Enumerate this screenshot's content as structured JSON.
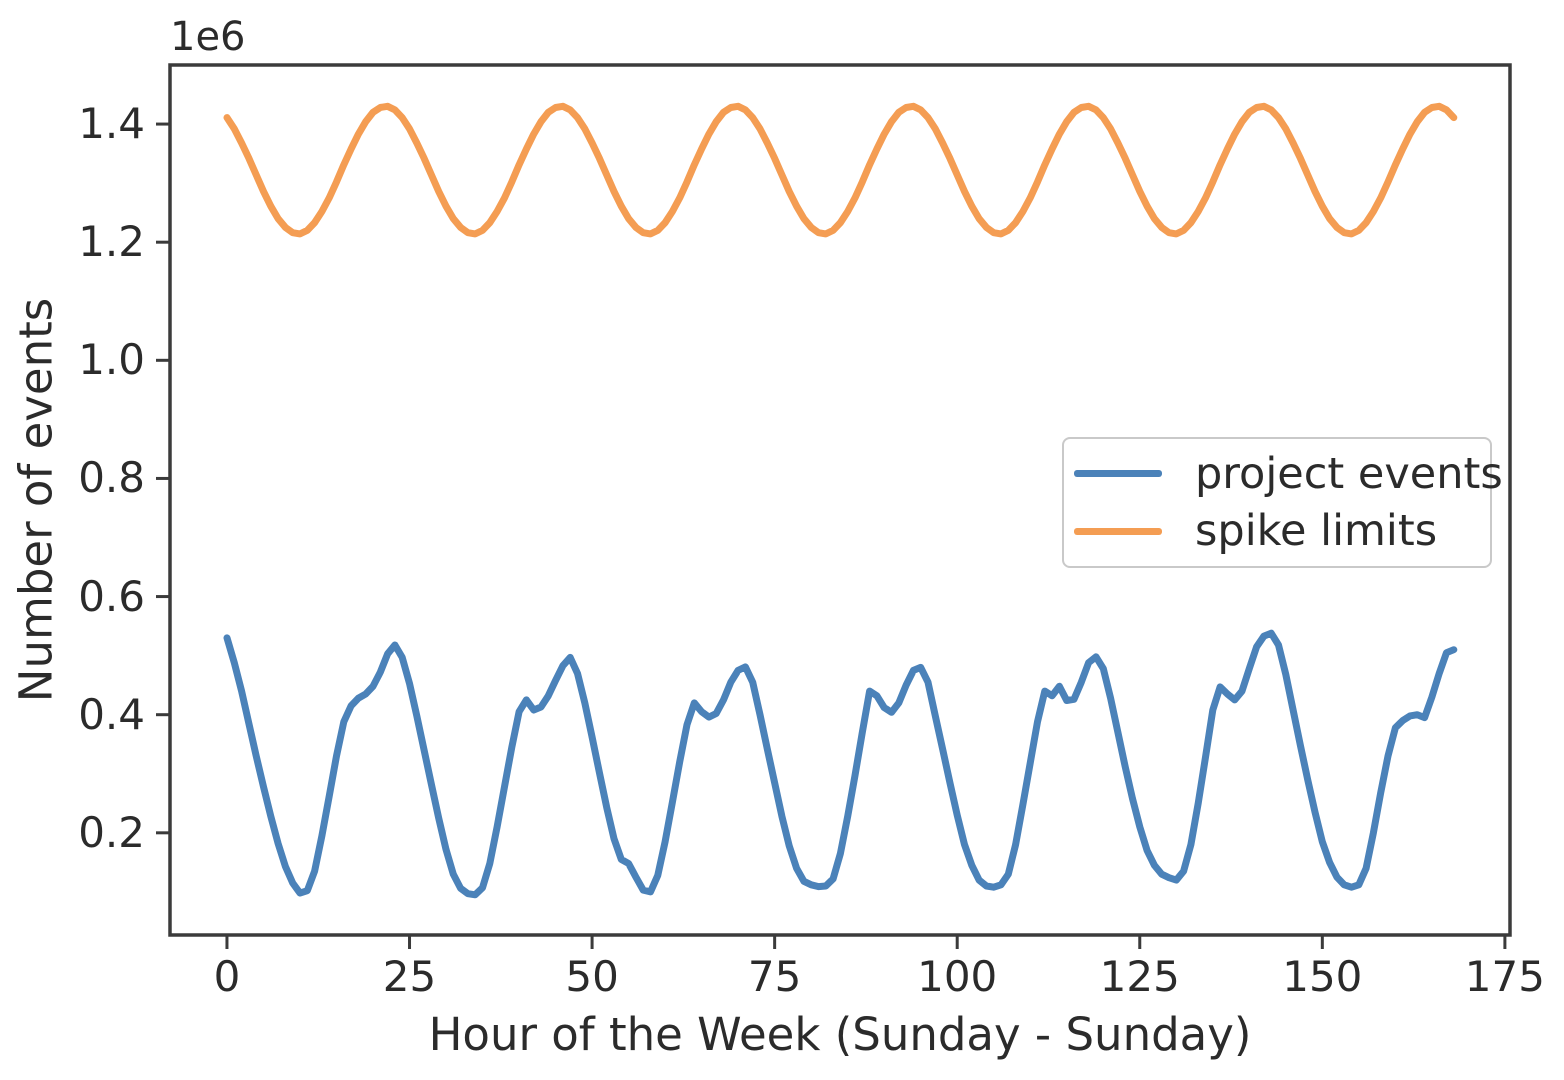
{
  "figure": {
    "colors": {
      "background": "#ffffff",
      "spine": "#3b3b3b",
      "text": "#2b2b2b",
      "legend_border": "#c9c9c9"
    }
  },
  "chart_data": {
    "type": "line",
    "xlabel": "Hour of the Week (Sunday - Sunday)",
    "ylabel": "Number of events",
    "y_offset_text": "1e6",
    "grid": false,
    "legend": {
      "location": "center right",
      "entries": [
        "project events",
        "spike limits"
      ]
    },
    "xlim": [
      -7.8,
      175.7
    ],
    "ylim": [
      27000,
      1500000
    ],
    "xticks": {
      "values": [
        0,
        25,
        50,
        75,
        100,
        125,
        150,
        175
      ],
      "labels": [
        "0",
        "25",
        "50",
        "75",
        "100",
        "125",
        "150",
        "175"
      ]
    },
    "yticks": {
      "values": [
        200000,
        400000,
        600000,
        800000,
        1000000,
        1200000,
        1400000
      ],
      "labels": [
        "0.2",
        "0.4",
        "0.6",
        "0.8",
        "1.0",
        "1.2",
        "1.4"
      ]
    },
    "x_hours": [
      0,
      1,
      2,
      3,
      4,
      5,
      6,
      7,
      8,
      9,
      10,
      11,
      12,
      13,
      14,
      15,
      16,
      17,
      18,
      19,
      20,
      21,
      22,
      23,
      24,
      25,
      26,
      27,
      28,
      29,
      30,
      31,
      32,
      33,
      34,
      35,
      36,
      37,
      38,
      39,
      40,
      41,
      42,
      43,
      44,
      45,
      46,
      47,
      48,
      49,
      50,
      51,
      52,
      53,
      54,
      55,
      56,
      57,
      58,
      59,
      60,
      61,
      62,
      63,
      64,
      65,
      66,
      67,
      68,
      69,
      70,
      71,
      72,
      73,
      74,
      75,
      76,
      77,
      78,
      79,
      80,
      81,
      82,
      83,
      84,
      85,
      86,
      87,
      88,
      89,
      90,
      91,
      92,
      93,
      94,
      95,
      96,
      97,
      98,
      99,
      100,
      101,
      102,
      103,
      104,
      105,
      106,
      107,
      108,
      109,
      110,
      111,
      112,
      113,
      114,
      115,
      116,
      117,
      118,
      119,
      120,
      121,
      122,
      123,
      124,
      125,
      126,
      127,
      128,
      129,
      130,
      131,
      132,
      133,
      134,
      135,
      136,
      137,
      138,
      139,
      140,
      141,
      142,
      143,
      144,
      145,
      146,
      147,
      148,
      149,
      150,
      151,
      152,
      153,
      154,
      155,
      156,
      157,
      158,
      159,
      160,
      161,
      162,
      163,
      164,
      165,
      166,
      167,
      168
    ],
    "series": [
      {
        "name": "project events",
        "color": "#4b82b9",
        "values": [
          530000,
          488000,
          440000,
          385000,
          330000,
          278000,
          228000,
          182000,
          143000,
          115000,
          98000,
          102000,
          135000,
          195000,
          262000,
          330000,
          388000,
          415000,
          428000,
          435000,
          448000,
          472000,
          503000,
          518000,
          497000,
          453000,
          398000,
          340000,
          282000,
          225000,
          172000,
          130000,
          106000,
          97000,
          95000,
          107000,
          148000,
          210000,
          278000,
          345000,
          405000,
          425000,
          408000,
          413000,
          432000,
          458000,
          483000,
          497000,
          470000,
          420000,
          362000,
          302000,
          243000,
          190000,
          155000,
          148000,
          125000,
          103000,
          100000,
          128000,
          185000,
          252000,
          320000,
          383000,
          420000,
          405000,
          396000,
          402000,
          425000,
          455000,
          475000,
          481000,
          455000,
          400000,
          342000,
          285000,
          228000,
          178000,
          140000,
          118000,
          112000,
          109000,
          110000,
          122000,
          165000,
          228000,
          297000,
          370000,
          440000,
          432000,
          412000,
          404000,
          420000,
          450000,
          475000,
          480000,
          455000,
          398000,
          342000,
          285000,
          230000,
          180000,
          145000,
          120000,
          110000,
          108000,
          112000,
          130000,
          180000,
          248000,
          318000,
          388000,
          440000,
          432000,
          448000,
          424000,
          426000,
          455000,
          488000,
          498000,
          478000,
          428000,
          370000,
          312000,
          258000,
          210000,
          170000,
          145000,
          130000,
          124000,
          120000,
          135000,
          180000,
          250000,
          328000,
          408000,
          447000,
          435000,
          425000,
          440000,
          478000,
          515000,
          533000,
          538000,
          518000,
          468000,
          408000,
          348000,
          290000,
          235000,
          185000,
          150000,
          125000,
          112000,
          108000,
          112000,
          140000,
          200000,
          268000,
          330000,
          378000,
          390000,
          398000,
          400000,
          395000,
          430000,
          470000,
          505000,
          510000
        ]
      },
      {
        "name": "spike limits",
        "color": "#f49d53",
        "values": [
          1411000,
          1392000,
          1368000,
          1342000,
          1314000,
          1286000,
          1261000,
          1240000,
          1225000,
          1216000,
          1214000,
          1220000,
          1233000,
          1252000,
          1275000,
          1302000,
          1331000,
          1358000,
          1383000,
          1404000,
          1420000,
          1428000,
          1430000,
          1424000,
          1411000,
          1392000,
          1368000,
          1342000,
          1314000,
          1286000,
          1261000,
          1240000,
          1225000,
          1216000,
          1214000,
          1220000,
          1233000,
          1252000,
          1275000,
          1302000,
          1331000,
          1358000,
          1383000,
          1404000,
          1420000,
          1428000,
          1430000,
          1424000,
          1411000,
          1392000,
          1368000,
          1342000,
          1314000,
          1286000,
          1261000,
          1240000,
          1225000,
          1216000,
          1214000,
          1220000,
          1233000,
          1252000,
          1275000,
          1302000,
          1331000,
          1358000,
          1383000,
          1404000,
          1420000,
          1428000,
          1430000,
          1424000,
          1411000,
          1392000,
          1368000,
          1342000,
          1314000,
          1286000,
          1261000,
          1240000,
          1225000,
          1216000,
          1214000,
          1220000,
          1233000,
          1252000,
          1275000,
          1302000,
          1331000,
          1358000,
          1383000,
          1404000,
          1420000,
          1428000,
          1430000,
          1424000,
          1411000,
          1392000,
          1368000,
          1342000,
          1314000,
          1286000,
          1261000,
          1240000,
          1225000,
          1216000,
          1214000,
          1220000,
          1233000,
          1252000,
          1275000,
          1302000,
          1331000,
          1358000,
          1383000,
          1404000,
          1420000,
          1428000,
          1430000,
          1424000,
          1411000,
          1392000,
          1368000,
          1342000,
          1314000,
          1286000,
          1261000,
          1240000,
          1225000,
          1216000,
          1214000,
          1220000,
          1233000,
          1252000,
          1275000,
          1302000,
          1331000,
          1358000,
          1383000,
          1404000,
          1420000,
          1428000,
          1430000,
          1424000,
          1411000,
          1392000,
          1368000,
          1342000,
          1314000,
          1286000,
          1261000,
          1240000,
          1225000,
          1216000,
          1214000,
          1220000,
          1233000,
          1252000,
          1275000,
          1302000,
          1331000,
          1358000,
          1383000,
          1404000,
          1420000,
          1428000,
          1430000,
          1424000,
          1411000
        ]
      }
    ]
  }
}
